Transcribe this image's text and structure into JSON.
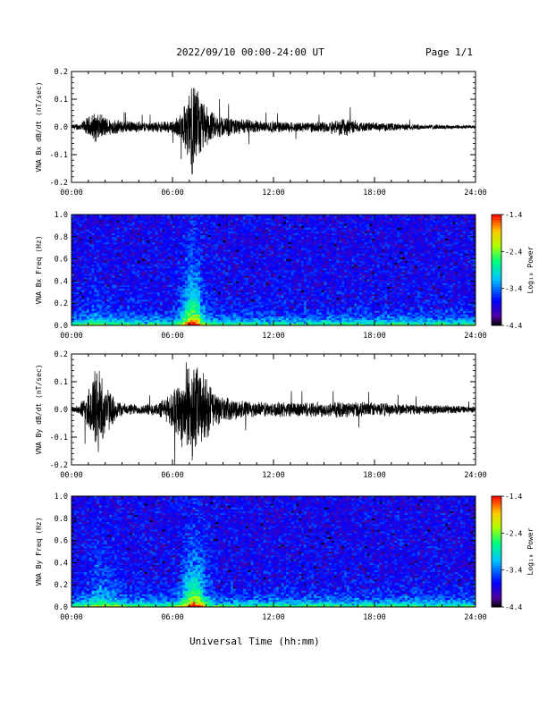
{
  "header": {
    "title": "2022/09/10  00:00-24:00 UT",
    "page": "Page 1/1"
  },
  "chart_data": [
    {
      "type": "line",
      "ylabel": "VNA Bx dB/dt (nT/sec)",
      "xlim": [
        0,
        24
      ],
      "ylim": [
        -0.2,
        0.2
      ],
      "yticks": [
        "-0.2",
        "-0.1",
        "0.0",
        "0.1",
        "0.2"
      ],
      "xticks": [
        "00:00",
        "06:00",
        "12:00",
        "18:00",
        "24:00"
      ],
      "series": [
        {
          "envelope_hours": [
            0,
            0.5,
            1.0,
            1.4,
            1.7,
            2.2,
            3.0,
            4.0,
            5.0,
            6.0,
            6.5,
            6.9,
            7.2,
            7.5,
            7.9,
            8.5,
            9.5,
            11,
            13,
            15,
            16.3,
            17,
            19,
            21,
            23,
            24
          ],
          "amplitude": [
            0.01,
            0.015,
            0.04,
            0.06,
            0.05,
            0.035,
            0.025,
            0.02,
            0.02,
            0.025,
            0.05,
            0.12,
            0.2,
            0.15,
            0.09,
            0.05,
            0.035,
            0.025,
            0.02,
            0.02,
            0.04,
            0.02,
            0.015,
            0.01,
            0.008,
            0.006
          ]
        }
      ]
    },
    {
      "type": "heatmap",
      "ylabel": "VNA Bx Freq (Hz)",
      "xlim": [
        0,
        24
      ],
      "ylim": [
        0,
        1.0
      ],
      "yticks": [
        "0.0",
        "0.2",
        "0.4",
        "0.6",
        "0.8",
        "1.0"
      ],
      "xticks": [
        "00:00",
        "06:00",
        "12:00",
        "18:00",
        "24:00"
      ],
      "colorbar": {
        "label": "Log₁₀ Power",
        "range": [
          -4.4,
          -1.4
        ],
        "ticks": [
          "-1.4",
          "-2.4",
          "-3.4",
          "-4.4"
        ]
      }
    },
    {
      "type": "line",
      "ylabel": "VNA By dB/dt (nT/sec)",
      "xlim": [
        0,
        24
      ],
      "ylim": [
        -0.2,
        0.2
      ],
      "yticks": [
        "-0.2",
        "-0.1",
        "0.0",
        "0.1",
        "0.2"
      ],
      "xticks": [
        "00:00",
        "06:00",
        "12:00",
        "18:00",
        "24:00"
      ],
      "series": [
        {
          "envelope_hours": [
            0,
            0.5,
            1.0,
            1.5,
            1.9,
            2.4,
            3.0,
            4.0,
            5.0,
            5.7,
            6.2,
            6.8,
            7.2,
            7.6,
            8.1,
            8.6,
            9.5,
            11,
            13,
            15,
            17,
            19,
            21,
            23,
            24
          ],
          "amplitude": [
            0.01,
            0.02,
            0.08,
            0.2,
            0.12,
            0.06,
            0.025,
            0.02,
            0.025,
            0.05,
            0.1,
            0.18,
            0.2,
            0.16,
            0.12,
            0.06,
            0.04,
            0.03,
            0.03,
            0.03,
            0.03,
            0.025,
            0.02,
            0.015,
            0.012
          ]
        }
      ]
    },
    {
      "type": "heatmap",
      "ylabel": "VNA By Freq (Hz)",
      "xlim": [
        0,
        24
      ],
      "ylim": [
        0,
        1.0
      ],
      "yticks": [
        "0.0",
        "0.2",
        "0.4",
        "0.6",
        "0.8",
        "1.0"
      ],
      "xticks": [
        "00:00",
        "06:00",
        "12:00",
        "18:00",
        "24:00"
      ],
      "colorbar": {
        "label": "Log₁₀ Power",
        "range": [
          -4.4,
          -1.4
        ],
        "ticks": [
          "-1.4",
          "-2.4",
          "-3.4",
          "-4.4"
        ]
      }
    }
  ],
  "xlabel": "Universal Time (hh:mm)"
}
